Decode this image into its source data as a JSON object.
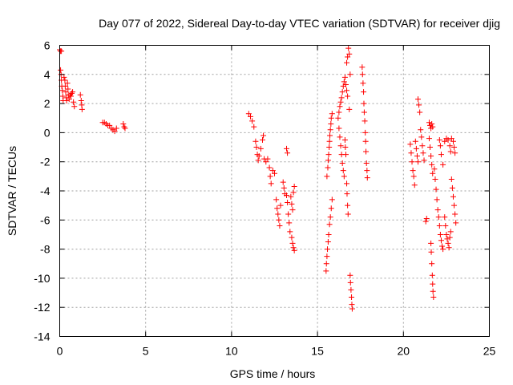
{
  "chart_data": {
    "type": "scatter",
    "title": "Day 077 of 2022, Sidereal Day-to-day VTEC variation (SDTVAR) for receiver djig",
    "xlabel": "GPS time / hours",
    "ylabel": "SDTVAR / TECUs",
    "xlim": [
      0,
      25
    ],
    "ylim": [
      -14,
      6
    ],
    "xticks": [
      0,
      5,
      10,
      15,
      20,
      25
    ],
    "yticks": [
      -14,
      -12,
      -10,
      -8,
      -6,
      -4,
      -2,
      0,
      2,
      4,
      6
    ],
    "grid": true,
    "marker": "+",
    "color": "#ff0000",
    "series": [
      {
        "name": "SDTVAR",
        "points": [
          [
            0.0,
            5.7
          ],
          [
            0.05,
            5.6
          ],
          [
            0.1,
            5.6
          ],
          [
            0.05,
            4.3
          ],
          [
            0.08,
            4.0
          ],
          [
            0.1,
            3.6
          ],
          [
            0.12,
            3.2
          ],
          [
            0.15,
            2.9
          ],
          [
            0.18,
            2.5
          ],
          [
            0.2,
            2.2
          ],
          [
            0.25,
            3.8
          ],
          [
            0.3,
            3.6
          ],
          [
            0.32,
            3.2
          ],
          [
            0.35,
            2.8
          ],
          [
            0.38,
            2.4
          ],
          [
            0.4,
            2.2
          ],
          [
            0.45,
            3.4
          ],
          [
            0.48,
            3.0
          ],
          [
            0.5,
            2.6
          ],
          [
            0.55,
            2.3
          ],
          [
            0.6,
            2.6
          ],
          [
            0.65,
            2.5
          ],
          [
            0.7,
            2.7
          ],
          [
            0.75,
            2.8
          ],
          [
            0.8,
            2.1
          ],
          [
            0.85,
            1.8
          ],
          [
            1.2,
            2.6
          ],
          [
            1.25,
            2.2
          ],
          [
            1.28,
            1.9
          ],
          [
            1.3,
            1.6
          ],
          [
            2.5,
            0.7
          ],
          [
            2.6,
            0.7
          ],
          [
            2.7,
            0.6
          ],
          [
            2.8,
            0.5
          ],
          [
            2.9,
            0.5
          ],
          [
            3.0,
            0.3
          ],
          [
            3.1,
            0.2
          ],
          [
            3.2,
            0.1
          ],
          [
            3.3,
            0.3
          ],
          [
            3.7,
            0.6
          ],
          [
            3.75,
            0.4
          ],
          [
            3.8,
            0.3
          ],
          [
            11.0,
            1.3
          ],
          [
            11.1,
            1.1
          ],
          [
            11.2,
            0.8
          ],
          [
            11.3,
            0.4
          ],
          [
            11.4,
            -0.6
          ],
          [
            11.45,
            -1.0
          ],
          [
            11.5,
            -1.5
          ],
          [
            11.55,
            -1.9
          ],
          [
            11.6,
            -1.6
          ],
          [
            11.7,
            -1.1
          ],
          [
            11.8,
            -0.5
          ],
          [
            11.85,
            -0.2
          ],
          [
            11.9,
            -1.8
          ],
          [
            12.0,
            -2.0
          ],
          [
            12.1,
            -1.8
          ],
          [
            12.2,
            -2.4
          ],
          [
            12.25,
            -3.0
          ],
          [
            12.3,
            -3.5
          ],
          [
            12.4,
            -2.6
          ],
          [
            12.5,
            -2.8
          ],
          [
            12.6,
            -4.6
          ],
          [
            12.65,
            -5.2
          ],
          [
            12.7,
            -5.6
          ],
          [
            12.75,
            -6.0
          ],
          [
            12.8,
            -6.4
          ],
          [
            12.85,
            -5.0
          ],
          [
            13.0,
            -3.4
          ],
          [
            13.05,
            -3.8
          ],
          [
            13.1,
            -4.2
          ],
          [
            13.2,
            -4.3
          ],
          [
            13.25,
            -4.8
          ],
          [
            13.3,
            -5.6
          ],
          [
            13.35,
            -6.2
          ],
          [
            13.4,
            -6.8
          ],
          [
            13.5,
            -7.2
          ],
          [
            13.55,
            -7.6
          ],
          [
            13.6,
            -7.9
          ],
          [
            13.65,
            -8.1
          ],
          [
            13.2,
            -1.1
          ],
          [
            13.25,
            -1.4
          ],
          [
            13.45,
            -4.4
          ],
          [
            13.5,
            -4.9
          ],
          [
            13.55,
            -5.3
          ],
          [
            13.6,
            -4.1
          ],
          [
            13.65,
            -3.7
          ],
          [
            15.5,
            -9.5
          ],
          [
            15.52,
            -9.0
          ],
          [
            15.55,
            -8.5
          ],
          [
            15.58,
            -8.0
          ],
          [
            15.62,
            -7.5
          ],
          [
            15.65,
            -7.0
          ],
          [
            15.7,
            -6.3
          ],
          [
            15.75,
            -5.8
          ],
          [
            15.8,
            -5.2
          ],
          [
            15.85,
            -4.6
          ],
          [
            15.55,
            -3.0
          ],
          [
            15.6,
            -2.4
          ],
          [
            15.62,
            -1.9
          ],
          [
            15.65,
            -1.5
          ],
          [
            15.68,
            -1.0
          ],
          [
            15.7,
            -0.6
          ],
          [
            15.72,
            -0.2
          ],
          [
            15.75,
            0.2
          ],
          [
            15.78,
            0.6
          ],
          [
            15.8,
            1.0
          ],
          [
            15.85,
            1.3
          ],
          [
            16.2,
            1.0
          ],
          [
            16.25,
            1.4
          ],
          [
            16.3,
            1.8
          ],
          [
            16.35,
            2.1
          ],
          [
            16.4,
            2.4
          ],
          [
            16.45,
            2.8
          ],
          [
            16.5,
            3.2
          ],
          [
            16.55,
            3.5
          ],
          [
            16.6,
            3.8
          ],
          [
            16.65,
            3.3
          ],
          [
            16.7,
            2.9
          ],
          [
            16.75,
            2.5
          ],
          [
            16.25,
            0.3
          ],
          [
            16.3,
            -0.3
          ],
          [
            16.35,
            -0.9
          ],
          [
            16.4,
            -1.5
          ],
          [
            16.45,
            -2.1
          ],
          [
            16.5,
            -2.6
          ],
          [
            16.55,
            -3.0
          ],
          [
            16.6,
            -0.5
          ],
          [
            16.62,
            -1.0
          ],
          [
            16.65,
            -1.5
          ],
          [
            16.7,
            -3.5
          ],
          [
            16.72,
            -4.2
          ],
          [
            16.75,
            -5.0
          ],
          [
            16.78,
            -5.6
          ],
          [
            16.7,
            4.8
          ],
          [
            16.75,
            5.2
          ],
          [
            16.8,
            5.8
          ],
          [
            16.85,
            5.4
          ],
          [
            16.9,
            4.0
          ],
          [
            16.85,
            1.6
          ],
          [
            16.9,
            -9.8
          ],
          [
            16.92,
            -10.3
          ],
          [
            16.95,
            -10.8
          ],
          [
            16.98,
            -11.3
          ],
          [
            17.0,
            -11.8
          ],
          [
            17.02,
            -12.1
          ],
          [
            17.6,
            4.5
          ],
          [
            17.62,
            4.0
          ],
          [
            17.65,
            3.4
          ],
          [
            17.68,
            2.8
          ],
          [
            17.7,
            2.0
          ],
          [
            17.72,
            1.4
          ],
          [
            17.75,
            0.8
          ],
          [
            17.78,
            0.0
          ],
          [
            17.8,
            -0.6
          ],
          [
            17.82,
            -1.3
          ],
          [
            17.85,
            -2.1
          ],
          [
            17.88,
            -2.6
          ],
          [
            17.9,
            -3.1
          ],
          [
            20.4,
            -0.8
          ],
          [
            20.45,
            -1.4
          ],
          [
            20.5,
            -2.0
          ],
          [
            20.55,
            -2.6
          ],
          [
            20.6,
            -3.0
          ],
          [
            20.65,
            -3.6
          ],
          [
            20.7,
            -0.6
          ],
          [
            20.75,
            -1.1
          ],
          [
            20.8,
            -1.6
          ],
          [
            20.85,
            -2.0
          ],
          [
            20.85,
            2.3
          ],
          [
            20.9,
            1.9
          ],
          [
            20.95,
            1.4
          ],
          [
            21.0,
            0.2
          ],
          [
            21.05,
            -0.3
          ],
          [
            21.1,
            -0.9
          ],
          [
            21.15,
            -1.4
          ],
          [
            21.2,
            -1.9
          ],
          [
            21.3,
            -6.1
          ],
          [
            21.35,
            -5.9
          ],
          [
            21.5,
            0.7
          ],
          [
            21.55,
            0.5
          ],
          [
            21.6,
            0.3
          ],
          [
            21.65,
            0.6
          ],
          [
            21.7,
            0.4
          ],
          [
            21.5,
            -0.4
          ],
          [
            21.55,
            -1.0
          ],
          [
            21.6,
            -1.6
          ],
          [
            21.65,
            -2.2
          ],
          [
            21.7,
            -2.8
          ],
          [
            21.6,
            -7.6
          ],
          [
            21.62,
            -8.2
          ],
          [
            21.65,
            -9.0
          ],
          [
            21.68,
            -9.8
          ],
          [
            21.7,
            -10.4
          ],
          [
            21.72,
            -10.9
          ],
          [
            21.75,
            -11.3
          ],
          [
            21.8,
            -2.5
          ],
          [
            21.85,
            -3.2
          ],
          [
            21.9,
            -3.9
          ],
          [
            21.95,
            -4.6
          ],
          [
            22.0,
            -5.3
          ],
          [
            22.05,
            -5.8
          ],
          [
            22.1,
            -6.4
          ],
          [
            22.15,
            -7.0
          ],
          [
            22.2,
            -7.4
          ],
          [
            22.25,
            -7.8
          ],
          [
            22.3,
            -8.0
          ],
          [
            22.1,
            -0.5
          ],
          [
            22.15,
            -0.9
          ],
          [
            22.2,
            -1.5
          ],
          [
            22.3,
            -2.2
          ],
          [
            22.4,
            -0.6
          ],
          [
            22.5,
            -0.4
          ],
          [
            22.6,
            -0.5
          ],
          [
            22.7,
            -0.9
          ],
          [
            22.75,
            -1.3
          ],
          [
            22.8,
            -0.4
          ],
          [
            22.4,
            -5.8
          ],
          [
            22.45,
            -6.4
          ],
          [
            22.5,
            -7.0
          ],
          [
            22.55,
            -7.3
          ],
          [
            22.6,
            -7.6
          ],
          [
            22.65,
            -7.9
          ],
          [
            22.7,
            -7.2
          ],
          [
            22.75,
            -6.8
          ],
          [
            22.8,
            -3.2
          ],
          [
            22.85,
            -3.8
          ],
          [
            22.9,
            -4.4
          ],
          [
            22.95,
            -5.0
          ],
          [
            23.0,
            -5.6
          ],
          [
            23.05,
            -6.2
          ],
          [
            22.9,
            -0.6
          ],
          [
            22.95,
            -1.0
          ],
          [
            23.0,
            -1.4
          ]
        ]
      }
    ]
  }
}
